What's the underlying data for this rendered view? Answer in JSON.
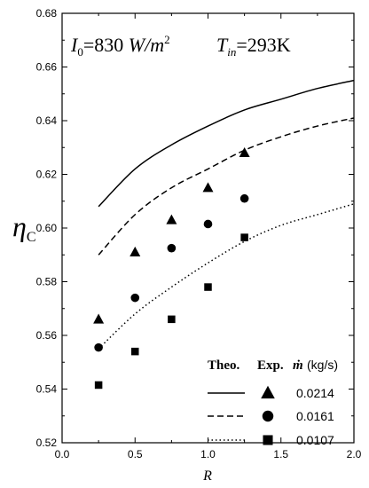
{
  "chart_data": {
    "type": "line",
    "annotation": {
      "i0_symbol": "I",
      "i0_sub": "0",
      "i0_value": "=830 ",
      "i0_unit": "W/m",
      "i0_unit_sup": "2",
      "tin_symbol": "T",
      "tin_sub": "in",
      "tin_value": "=293K"
    },
    "xlabel": "R",
    "ylabel_symbol": "η",
    "ylabel_sub": "C",
    "xlim": [
      0.0,
      2.0
    ],
    "ylim": [
      0.52,
      0.68
    ],
    "x_ticks": [
      "0.0",
      "0.5",
      "1.0",
      "1.5",
      "2.0"
    ],
    "y_ticks": [
      "0.52",
      "0.54",
      "0.56",
      "0.58",
      "0.60",
      "0.62",
      "0.64",
      "0.66",
      "0.68"
    ],
    "grid": false,
    "legend": {
      "position": "bottom-right",
      "head_theo": "Theo.",
      "head_exp": "Exp.",
      "head_mdot": "ṁ",
      "head_unit": "(kg/s)"
    },
    "series": [
      {
        "name": "0.0214",
        "line_style": "solid",
        "marker": "triangle",
        "theory": {
          "x": [
            0.25,
            0.5,
            0.75,
            1.0,
            1.25,
            1.5,
            1.75,
            2.0
          ],
          "y": [
            0.608,
            0.622,
            0.631,
            0.638,
            0.644,
            0.648,
            0.652,
            0.655
          ]
        },
        "experiment": {
          "x": [
            0.25,
            0.5,
            0.75,
            1.0,
            1.25
          ],
          "y": [
            0.566,
            0.591,
            0.603,
            0.615,
            0.628
          ]
        }
      },
      {
        "name": "0.0161",
        "line_style": "dashed",
        "marker": "circle",
        "theory": {
          "x": [
            0.25,
            0.5,
            0.75,
            1.0,
            1.25,
            1.5,
            1.75,
            2.0
          ],
          "y": [
            0.59,
            0.605,
            0.615,
            0.622,
            0.629,
            0.634,
            0.638,
            0.641
          ]
        },
        "experiment": {
          "x": [
            0.25,
            0.5,
            0.75,
            1.0,
            1.25
          ],
          "y": [
            0.5555,
            0.574,
            0.5925,
            0.6015,
            0.611
          ]
        }
      },
      {
        "name": "0.0107",
        "line_style": "dotted",
        "marker": "square",
        "theory": {
          "x": [
            0.25,
            0.5,
            0.75,
            1.0,
            1.25,
            1.5,
            1.75,
            2.0
          ],
          "y": [
            0.555,
            0.568,
            0.578,
            0.587,
            0.595,
            0.601,
            0.605,
            0.609
          ]
        },
        "experiment": {
          "x": [
            0.25,
            0.5,
            0.75,
            1.0,
            1.25
          ],
          "y": [
            0.5415,
            0.554,
            0.566,
            0.578,
            0.5965
          ]
        }
      }
    ]
  }
}
